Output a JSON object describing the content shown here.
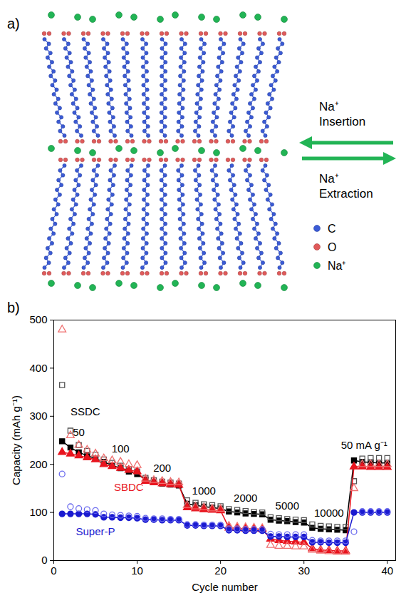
{
  "diagram": {
    "letter": "a)",
    "arrows": {
      "insertion": "Na⁺ Insertion",
      "extraction": "Na⁺ Extraction"
    },
    "legend": [
      {
        "label": "C",
        "color": "#3b5bd6"
      },
      {
        "label": "O",
        "color": "#e05a5a"
      },
      {
        "label": "Na⁺",
        "color": "#22b455"
      }
    ]
  },
  "chart_data": {
    "type": "line",
    "letter": "b)",
    "x_label": "Cycle number",
    "y_label": "Capacity (mAh g⁻¹)",
    "x": [
      1,
      2,
      3,
      4,
      5,
      6,
      7,
      8,
      9,
      10,
      11,
      12,
      13,
      14,
      15,
      16,
      17,
      18,
      19,
      20,
      21,
      22,
      23,
      24,
      25,
      26,
      27,
      28,
      29,
      30,
      31,
      32,
      33,
      34,
      35,
      36,
      37,
      38,
      39,
      40
    ],
    "xlim": [
      0,
      41
    ],
    "xticks": [
      0,
      10,
      20,
      30,
      40
    ],
    "ylim": [
      0,
      500
    ],
    "yticks": [
      0,
      100,
      200,
      300,
      400,
      500
    ],
    "annotations": [
      "50",
      "100",
      "200",
      "1000",
      "2000",
      "5000",
      "10000",
      "50 mA g⁻¹"
    ],
    "series": [
      {
        "name": "SSDC",
        "color": "#000000",
        "marker": "square",
        "line_style": "solid",
        "values": [
          248,
          235,
          225,
          218,
          212,
          205,
          198,
          192,
          185,
          180,
          168,
          163,
          160,
          158,
          156,
          118,
          115,
          112,
          110,
          108,
          102,
          100,
          98,
          97,
          96,
          85,
          83,
          82,
          80,
          79,
          68,
          66,
          65,
          64,
          63,
          208,
          205,
          204,
          203,
          203
        ]
      },
      {
        "name": "SSDC",
        "color": "#555555",
        "marker": "open_square",
        "line_style": "none",
        "values": [
          365,
          270,
          240,
          228,
          220,
          210,
          203,
          197,
          190,
          185,
          172,
          167,
          164,
          162,
          160,
          125,
          120,
          117,
          115,
          113,
          107,
          105,
          103,
          101,
          100,
          90,
          88,
          86,
          85,
          84,
          75,
          72,
          71,
          70,
          70,
          165,
          212,
          213,
          213,
          213
        ]
      },
      {
        "name": "SBDC",
        "color": "#e8141e",
        "marker": "triangle",
        "line_style": "solid",
        "values": [
          225,
          222,
          218,
          214,
          210,
          200,
          196,
          192,
          188,
          185,
          165,
          162,
          160,
          158,
          157,
          110,
          108,
          106,
          105,
          104,
          68,
          67,
          66,
          66,
          65,
          45,
          42,
          40,
          39,
          38,
          25,
          22,
          21,
          20,
          20,
          195,
          195,
          194,
          194,
          194
        ]
      },
      {
        "name": "SBDC",
        "color": "#f07070",
        "marker": "open_triangle",
        "line_style": "none",
        "values": [
          480,
          260,
          240,
          230,
          222,
          212,
          208,
          205,
          200,
          198,
          170,
          167,
          165,
          163,
          162,
          115,
          112,
          110,
          108,
          107,
          72,
          70,
          69,
          68,
          67,
          32,
          30,
          30,
          29,
          29,
          22,
          20,
          19,
          18,
          18,
          150,
          200,
          200,
          200,
          200
        ]
      },
      {
        "name": "Super-P",
        "color": "#1a1ad0",
        "marker": "circle",
        "line_style": "solid",
        "values": [
          97,
          97,
          97,
          97,
          96,
          90,
          90,
          89,
          89,
          88,
          85,
          85,
          84,
          84,
          84,
          73,
          73,
          72,
          72,
          72,
          63,
          63,
          62,
          62,
          62,
          50,
          50,
          49,
          49,
          49,
          38,
          38,
          37,
          37,
          37,
          100,
          100,
          100,
          100,
          100
        ]
      },
      {
        "name": "Super-P",
        "color": "#6a6aee",
        "marker": "open_circle",
        "line_style": "none",
        "values": [
          180,
          112,
          108,
          106,
          104,
          97,
          95,
          94,
          93,
          92,
          88,
          87,
          87,
          86,
          86,
          75,
          75,
          74,
          74,
          74,
          66,
          66,
          65,
          65,
          65,
          55,
          54,
          54,
          54,
          54,
          42,
          41,
          41,
          41,
          41,
          60,
          102,
          102,
          102,
          102
        ]
      }
    ]
  }
}
